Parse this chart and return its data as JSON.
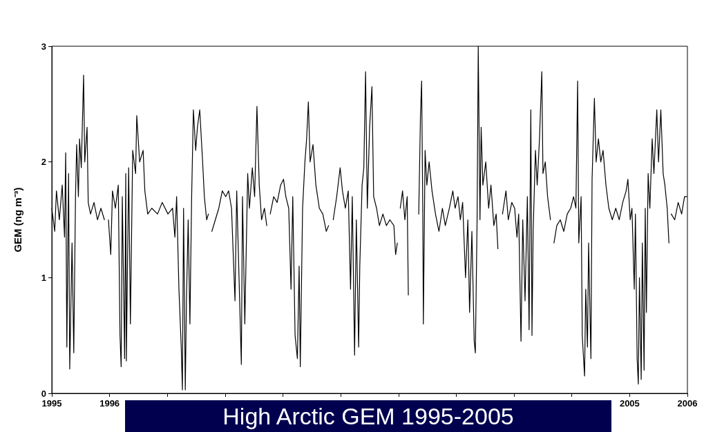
{
  "chart_data": {
    "type": "line",
    "title": "High Arctic GEM 1995-2005",
    "ylabel": "GEM (ng m⁻³)",
    "grid": false,
    "marker": "none",
    "line_style": "solid",
    "xlim": [
      1995,
      2006
    ],
    "xticks": [
      1995,
      1996,
      {
        "value": 1997,
        "label": null
      },
      {
        "value": 1998,
        "label": null
      },
      {
        "value": 1999,
        "label": null
      },
      {
        "value": 2000,
        "label": null
      },
      {
        "value": 2001,
        "label": null
      },
      {
        "value": 2002,
        "label": null
      },
      {
        "value": 2003,
        "label": null
      },
      {
        "value": 2004,
        "label": null
      },
      2005,
      2006
    ],
    "ylim": [
      0,
      3
    ],
    "yticks": [
      0,
      1,
      2,
      3
    ],
    "series": [
      {
        "color": "#000000",
        "x": [
          1995.0,
          1995.05,
          1995.08,
          1995.13,
          1995.18,
          1995.22,
          1995.24,
          1995.26,
          1995.29,
          1995.31,
          1995.35,
          1995.38,
          1995.41,
          1995.43,
          1995.46,
          1995.48,
          1995.51,
          1995.55,
          1995.57,
          1995.61,
          1995.63,
          1995.67,
          1995.73,
          1995.79,
          1995.85,
          1995.91,
          1995.94,
          1995.98,
          1996.02,
          1996.05,
          1996.1,
          1996.15,
          1996.18,
          1996.2,
          1996.22,
          1996.26,
          1996.28,
          1996.29,
          1996.33,
          1996.36,
          1996.4,
          1996.45,
          1996.47,
          1996.52,
          1996.58,
          1996.61,
          1996.66,
          1996.73,
          1996.83,
          1996.91,
          1997.01,
          1997.09,
          1997.13,
          1997.16,
          1997.2,
          1997.24,
          1997.26,
          1997.28,
          1997.31,
          1997.33,
          1997.36,
          1997.39,
          1997.42,
          1997.45,
          1997.49,
          1997.52,
          1997.56,
          1997.61,
          1997.64,
          1997.68,
          1997.71,
          1997.74,
          1997.77,
          1997.83,
          1997.89,
          1997.95,
          1998.01,
          1998.06,
          1998.11,
          1998.17,
          1998.2,
          1998.24,
          1998.28,
          1998.3,
          1998.34,
          1998.39,
          1998.42,
          1998.47,
          1998.51,
          1998.55,
          1998.59,
          1998.63,
          1998.68,
          1998.72,
          1998.74,
          1998.78,
          1998.84,
          1998.9,
          1998.96,
          1999.01,
          1999.05,
          1999.1,
          1999.14,
          1999.17,
          1999.21,
          1999.25,
          1999.28,
          1999.3,
          1999.34,
          1999.38,
          1999.41,
          1999.44,
          1999.47,
          1999.52,
          1999.57,
          1999.63,
          1999.69,
          1999.75,
          1999.79,
          1999.83,
          1999.87,
          1999.93,
          1999.99,
          2000.03,
          2000.08,
          2000.13,
          2000.17,
          2000.2,
          2000.24,
          2000.27,
          2000.31,
          2000.33,
          2000.37,
          2000.4,
          2000.43,
          2000.46,
          2000.5,
          2000.54,
          2000.57,
          2000.62,
          2000.67,
          2000.73,
          2000.79,
          2000.85,
          2000.92,
          2000.95,
          2000.98,
          2001.0,
          2001.03,
          2001.07,
          2001.11,
          2001.15,
          2001.17,
          2001.19,
          2001.35,
          2001.38,
          2001.4,
          2001.42,
          2001.43,
          2001.46,
          2001.49,
          2001.53,
          2001.58,
          2001.64,
          2001.7,
          2001.76,
          2001.81,
          2001.88,
          2001.94,
          2001.98,
          2002.03,
          2002.07,
          2002.11,
          2002.16,
          2002.2,
          2002.23,
          2002.27,
          2002.31,
          2002.33,
          2002.36,
          2002.38,
          2002.41,
          2002.43,
          2002.46,
          2002.51,
          2002.56,
          2002.6,
          2002.65,
          2002.69,
          2002.72,
          2002.75,
          2002.8,
          2002.86,
          2002.9,
          2002.96,
          2003.01,
          2003.05,
          2003.08,
          2003.12,
          2003.15,
          2003.19,
          2003.23,
          2003.26,
          2003.29,
          2003.31,
          2003.33,
          2003.37,
          2003.4,
          2003.44,
          2003.48,
          2003.5,
          2003.54,
          2003.58,
          2003.63,
          2003.66,
          2003.69,
          2003.74,
          2003.8,
          2003.86,
          2003.92,
          2003.98,
          2004.03,
          2004.07,
          2004.1,
          2004.12,
          2004.16,
          2004.18,
          2004.22,
          2004.24,
          2004.27,
          2004.29,
          2004.33,
          2004.35,
          2004.39,
          2004.42,
          2004.46,
          2004.5,
          2004.54,
          2004.59,
          2004.64,
          2004.7,
          2004.76,
          2004.82,
          2004.88,
          2004.94,
          2004.97,
          2005.01,
          2005.04,
          2005.08,
          2005.1,
          2005.13,
          2005.15,
          2005.17,
          2005.2,
          2005.22,
          2005.25,
          2005.27,
          2005.29,
          2005.32,
          2005.35,
          2005.39,
          2005.42,
          2005.47,
          2005.5,
          2005.54,
          2005.58,
          2005.61,
          2005.65,
          2005.68,
          2005.7,
          2005.72,
          2005.78,
          2005.84,
          2005.9,
          2005.95,
          2005.99
        ],
        "values": [
          1.6,
          1.4,
          1.75,
          1.5,
          1.8,
          1.35,
          2.08,
          0.4,
          1.9,
          0.21,
          1.3,
          0.35,
          1.7,
          2.15,
          1.7,
          2.2,
          1.95,
          2.75,
          2.0,
          2.3,
          1.65,
          1.55,
          1.65,
          1.5,
          1.6,
          1.5,
          null,
          1.5,
          1.2,
          1.75,
          1.6,
          1.8,
          0.5,
          0.23,
          1.7,
          0.3,
          1.9,
          0.28,
          1.95,
          0.6,
          2.1,
          1.9,
          2.4,
          2.0,
          2.1,
          1.75,
          1.55,
          1.6,
          1.55,
          1.65,
          1.55,
          1.6,
          1.35,
          1.7,
          0.9,
          0.4,
          0.03,
          1.6,
          0.03,
          0.8,
          1.5,
          0.6,
          1.7,
          2.45,
          2.1,
          2.3,
          2.45,
          2.0,
          1.7,
          1.5,
          1.55,
          null,
          1.4,
          1.5,
          1.6,
          1.75,
          1.7,
          1.75,
          1.6,
          0.8,
          1.75,
          1.0,
          0.25,
          1.7,
          0.6,
          1.9,
          1.6,
          1.95,
          1.7,
          2.48,
          1.8,
          1.5,
          1.6,
          1.45,
          null,
          1.55,
          1.7,
          1.65,
          1.8,
          1.85,
          1.7,
          1.6,
          0.9,
          1.7,
          0.5,
          0.3,
          1.1,
          0.23,
          1.6,
          2.0,
          2.2,
          2.52,
          2.0,
          2.15,
          1.8,
          1.6,
          1.55,
          1.4,
          1.45,
          null,
          1.5,
          1.7,
          1.95,
          1.75,
          1.6,
          1.75,
          0.9,
          1.7,
          0.33,
          1.5,
          0.4,
          1.1,
          1.8,
          1.95,
          2.78,
          1.6,
          2.3,
          2.65,
          1.7,
          1.6,
          1.45,
          1.55,
          1.45,
          1.5,
          1.45,
          1.2,
          1.3,
          null,
          1.6,
          1.75,
          1.5,
          1.7,
          0.85,
          null,
          1.55,
          2.4,
          2.7,
          1.6,
          0.6,
          2.1,
          1.8,
          2.0,
          1.75,
          1.55,
          1.4,
          1.6,
          1.45,
          1.6,
          1.75,
          1.6,
          1.7,
          1.5,
          1.65,
          1.0,
          1.5,
          0.7,
          1.4,
          0.45,
          0.35,
          1.5,
          3.0,
          1.5,
          2.3,
          1.8,
          2.0,
          1.6,
          1.8,
          1.45,
          1.55,
          1.25,
          null,
          1.55,
          1.75,
          1.5,
          1.65,
          1.6,
          1.35,
          1.55,
          0.45,
          1.5,
          0.8,
          1.7,
          0.55,
          2.45,
          0.5,
          1.4,
          2.1,
          1.8,
          2.2,
          2.78,
          1.9,
          2.0,
          1.7,
          1.5,
          null,
          1.3,
          1.45,
          1.5,
          1.4,
          1.55,
          1.6,
          1.7,
          1.6,
          2.7,
          1.3,
          1.7,
          0.5,
          0.15,
          0.9,
          0.4,
          1.3,
          0.3,
          1.85,
          2.55,
          2.0,
          2.2,
          2.0,
          2.1,
          1.8,
          1.6,
          1.5,
          1.6,
          1.5,
          1.65,
          1.75,
          1.85,
          1.5,
          1.6,
          0.9,
          1.55,
          0.3,
          0.08,
          1.0,
          0.12,
          1.3,
          0.2,
          1.6,
          0.7,
          1.9,
          1.6,
          2.2,
          1.9,
          2.45,
          2.0,
          2.45,
          1.9,
          1.8,
          1.6,
          1.3,
          null,
          1.55,
          1.5,
          1.65,
          1.55,
          1.7,
          1.7
        ]
      }
    ]
  }
}
